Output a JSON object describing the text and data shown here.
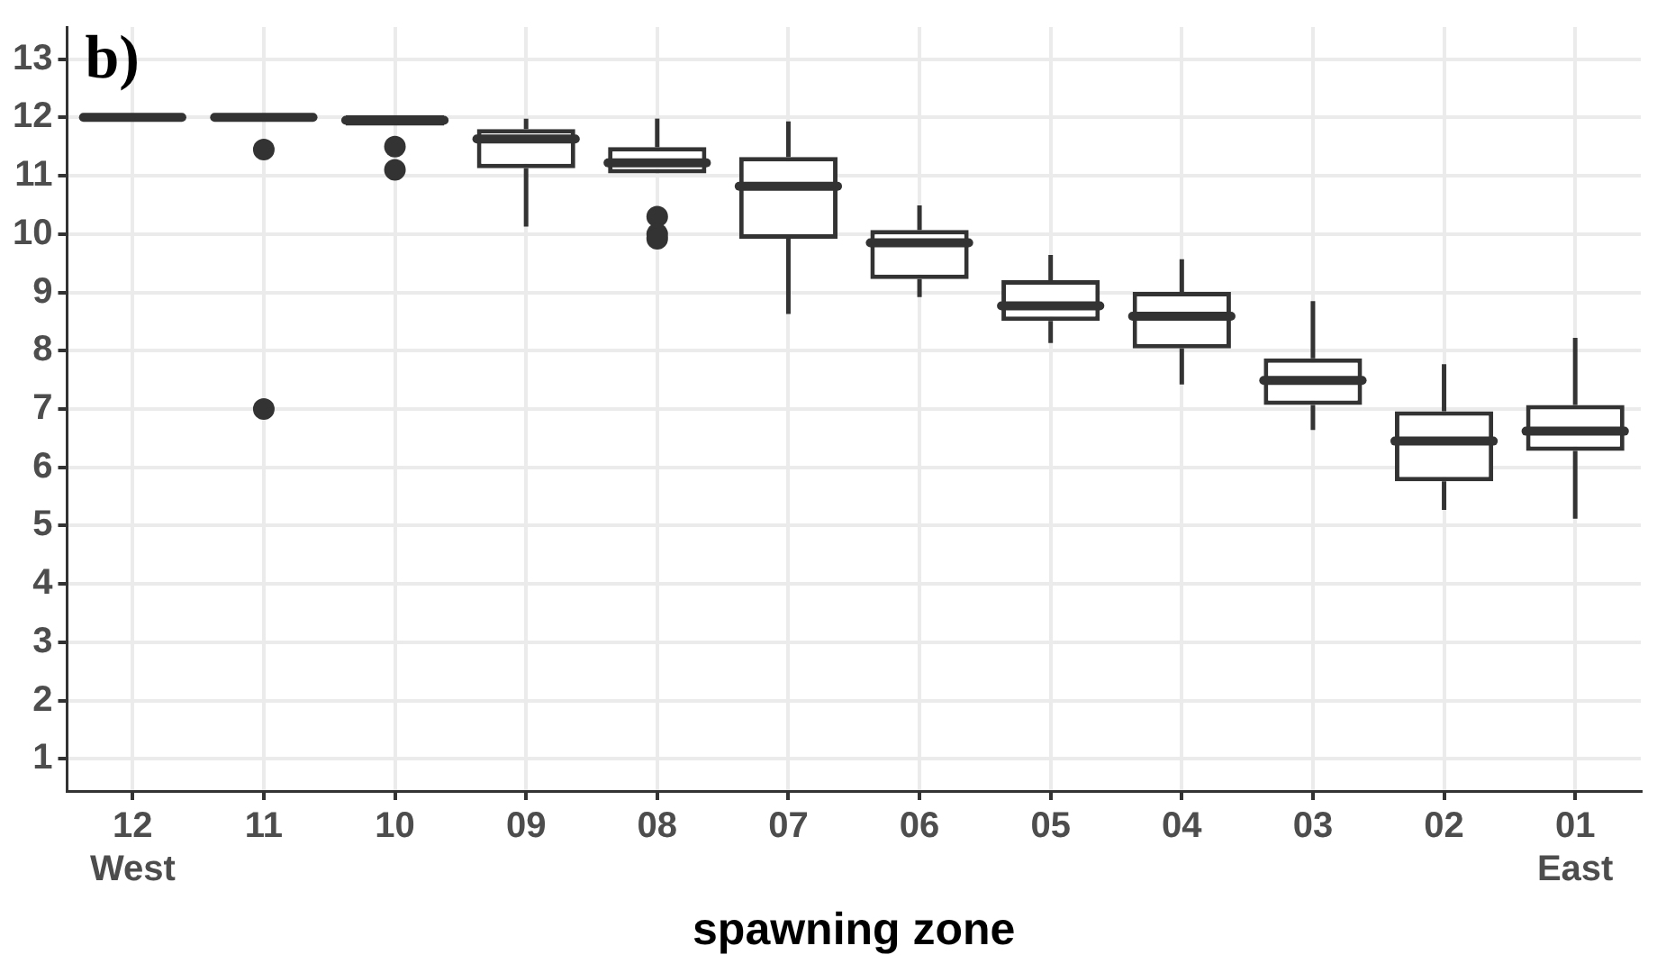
{
  "chart_data": {
    "type": "box",
    "title": "b)",
    "xlabel": "spawning zone",
    "categories": [
      "12\nWest",
      "11",
      "10",
      "09",
      "08",
      "07",
      "06",
      "05",
      "04",
      "03",
      "02",
      "01\nEast"
    ],
    "boxes": [
      {
        "low": 12,
        "q1": 12,
        "median": 12,
        "q3": 12,
        "high": 12
      },
      {
        "low": 12,
        "q1": 12,
        "median": 12,
        "q3": 12,
        "high": 12,
        "outliers": [
          11.45,
          7.0
        ]
      },
      {
        "low": 11.86,
        "q1": 11.86,
        "median": 11.95,
        "q3": 12.04,
        "high": 12.04,
        "outliers": [
          11.5,
          11.1
        ]
      },
      {
        "low": 10.13,
        "q1": 11.13,
        "median": 11.63,
        "q3": 11.8,
        "high": 11.98
      },
      {
        "low": 11.04,
        "q1": 11.04,
        "median": 11.22,
        "q3": 11.49,
        "high": 11.98,
        "outliers": [
          10.3,
          10.0,
          9.92
        ]
      },
      {
        "low": 8.63,
        "q1": 9.92,
        "median": 10.82,
        "q3": 11.32,
        "high": 11.93
      },
      {
        "low": 8.92,
        "q1": 9.23,
        "median": 9.85,
        "q3": 10.07,
        "high": 10.49
      },
      {
        "low": 8.13,
        "q1": 8.51,
        "median": 8.77,
        "q3": 9.21,
        "high": 9.64
      },
      {
        "low": 7.42,
        "q1": 8.04,
        "median": 8.59,
        "q3": 9.01,
        "high": 9.57
      },
      {
        "low": 6.64,
        "q1": 7.07,
        "median": 7.49,
        "q3": 7.87,
        "high": 8.85
      },
      {
        "low": 5.27,
        "q1": 5.76,
        "median": 6.45,
        "q3": 6.96,
        "high": 7.77
      },
      {
        "low": 5.12,
        "q1": 6.28,
        "median": 6.62,
        "q3": 7.07,
        "high": 8.22
      }
    ],
    "color": "#333333",
    "ylim": [
      0.45,
      13.55
    ],
    "yticks": [
      1,
      2,
      3,
      4,
      5,
      6,
      7,
      8,
      9,
      10,
      11,
      12,
      13
    ],
    "grid": true,
    "legend": false
  }
}
